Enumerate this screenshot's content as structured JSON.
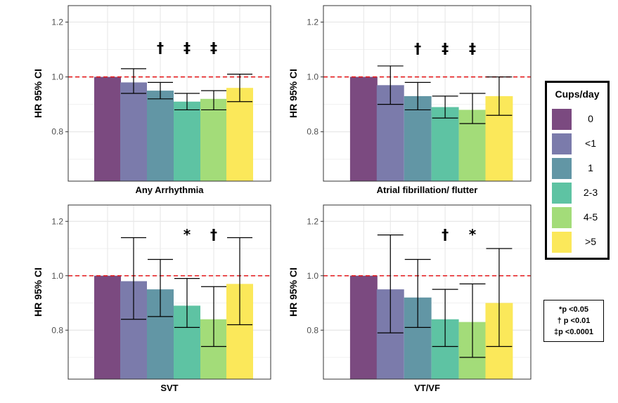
{
  "chart_data": [
    {
      "type": "bar",
      "title": "Any Arrhythmia",
      "ylabel": "HR 95% CI",
      "ylim": [
        0.62,
        1.26
      ],
      "yticks": [
        0.8,
        1.0,
        1.2
      ],
      "reference_line": 1.0,
      "categories": [
        "0",
        "<1",
        "1",
        "2-3",
        "4-5",
        ">5"
      ],
      "values": [
        1.0,
        0.98,
        0.95,
        0.91,
        0.92,
        0.96
      ],
      "ci_lower": [
        null,
        0.94,
        0.92,
        0.88,
        0.88,
        0.91
      ],
      "ci_upper": [
        null,
        1.03,
        0.98,
        0.94,
        0.95,
        1.01
      ],
      "markers": [
        "",
        "",
        "†",
        "‡",
        "‡",
        ""
      ]
    },
    {
      "type": "bar",
      "title": "Atrial fibrillation/ flutter",
      "ylabel": "HR 95% CI",
      "ylim": [
        0.62,
        1.26
      ],
      "yticks": [
        0.8,
        1.0,
        1.2
      ],
      "reference_line": 1.0,
      "categories": [
        "0",
        "<1",
        "1",
        "2-3",
        "4-5",
        ">5"
      ],
      "values": [
        1.0,
        0.97,
        0.93,
        0.89,
        0.88,
        0.93
      ],
      "ci_lower": [
        null,
        0.9,
        0.88,
        0.85,
        0.83,
        0.86
      ],
      "ci_upper": [
        null,
        1.04,
        0.98,
        0.93,
        0.94,
        1.0
      ],
      "markers": [
        "",
        "",
        "†",
        "‡",
        "‡",
        ""
      ]
    },
    {
      "type": "bar",
      "title": "SVT",
      "ylabel": "HR 95% CI",
      "ylim": [
        0.62,
        1.26
      ],
      "yticks": [
        0.8,
        1.0,
        1.2
      ],
      "reference_line": 1.0,
      "categories": [
        "0",
        "<1",
        "1",
        "2-3",
        "4-5",
        ">5"
      ],
      "values": [
        1.0,
        0.98,
        0.95,
        0.89,
        0.84,
        0.97
      ],
      "ci_lower": [
        null,
        0.84,
        0.85,
        0.81,
        0.74,
        0.82
      ],
      "ci_upper": [
        null,
        1.14,
        1.06,
        0.99,
        0.96,
        1.14
      ],
      "markers": [
        "",
        "",
        "",
        "*",
        "†",
        ""
      ]
    },
    {
      "type": "bar",
      "title": "VT/VF",
      "ylabel": "HR 95% CI",
      "ylim": [
        0.62,
        1.26
      ],
      "yticks": [
        0.8,
        1.0,
        1.2
      ],
      "reference_line": 1.0,
      "categories": [
        "0",
        "<1",
        "1",
        "2-3",
        "4-5",
        ">5"
      ],
      "values": [
        1.0,
        0.95,
        0.92,
        0.84,
        0.83,
        0.9
      ],
      "ci_lower": [
        null,
        0.79,
        0.81,
        0.74,
        0.7,
        0.74
      ],
      "ci_upper": [
        null,
        1.15,
        1.06,
        0.95,
        0.97,
        1.1
      ],
      "markers": [
        "",
        "",
        "",
        "†",
        "*",
        ""
      ]
    }
  ],
  "legend": {
    "title": "Cups/day",
    "items": [
      {
        "label": "0",
        "color": "#7b4a80"
      },
      {
        "label": "<1",
        "color": "#7b7bab"
      },
      {
        "label": "1",
        "color": "#6296a5"
      },
      {
        "label": "2-3",
        "color": "#5ec3a3"
      },
      {
        "label": "4-5",
        "color": "#a3dc79"
      },
      {
        "label": ">5",
        "color": "#fbe85a"
      }
    ]
  },
  "significance": {
    "lines": [
      "*p <0.05",
      "† p <0.01",
      "‡p <0.0001"
    ]
  },
  "colors": {
    "reference_line": "#e41a1c",
    "grid": "#e6e6e6",
    "panel_border": "#333333"
  }
}
